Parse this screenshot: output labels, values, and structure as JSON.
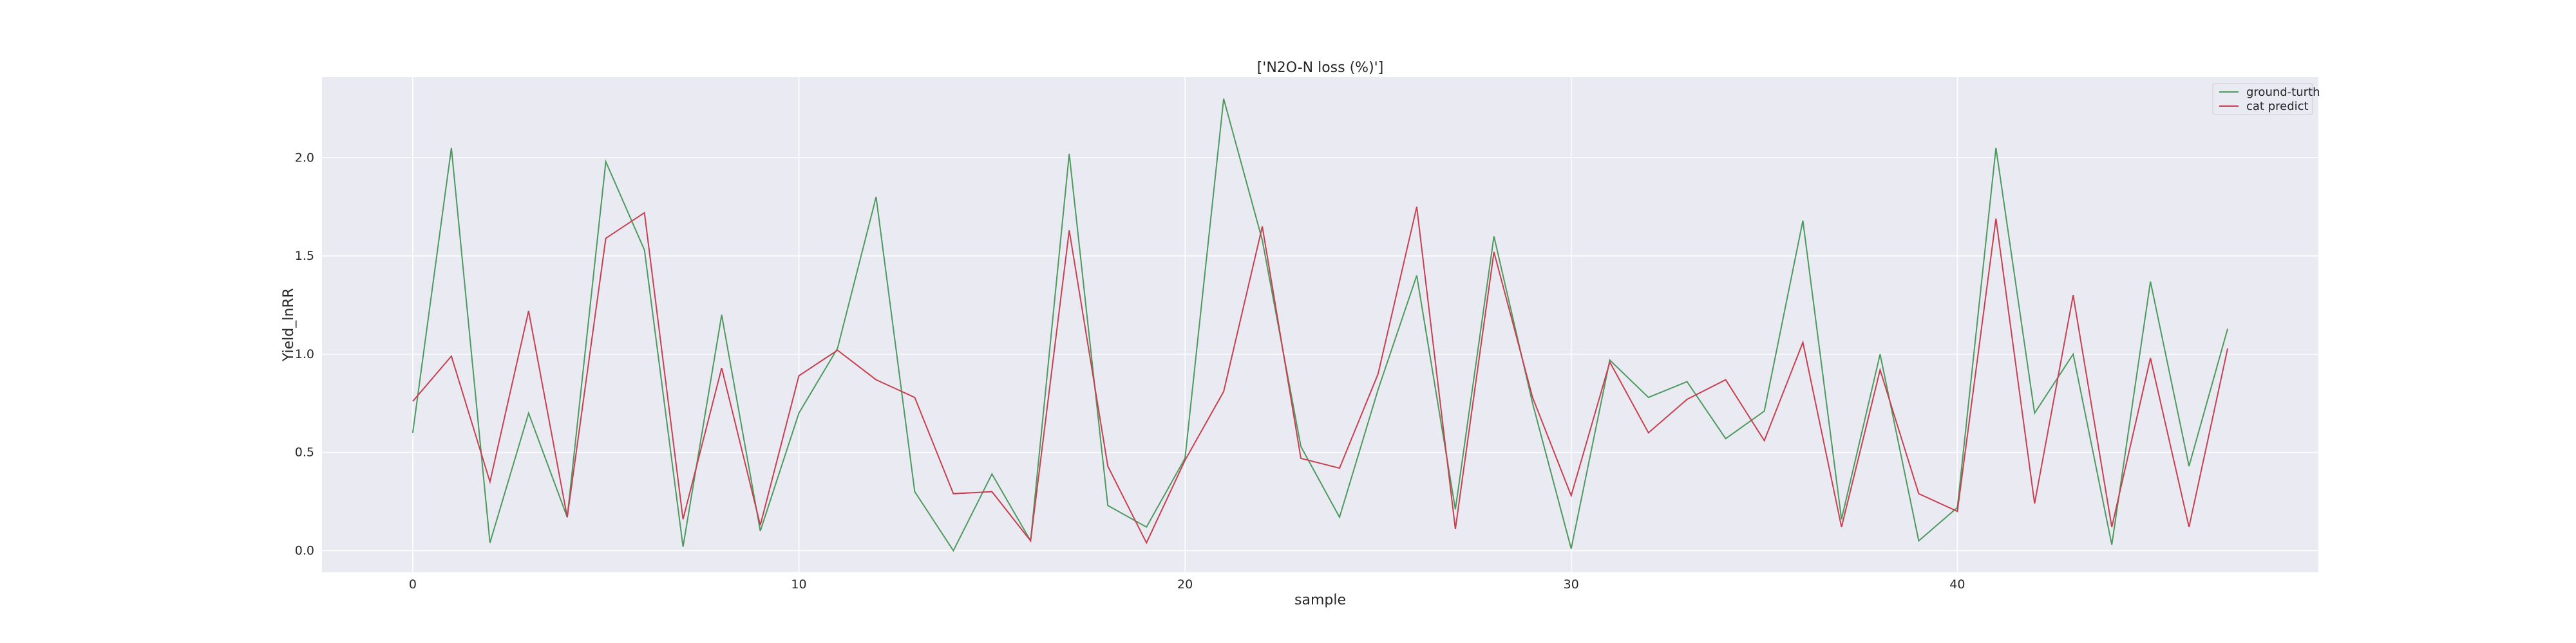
{
  "chart_data": {
    "type": "line",
    "title": "['N2O-N loss (%)']",
    "xlabel": "sample",
    "ylabel": "Yield_lnRR",
    "xlim": [
      -2.35,
      49.35
    ],
    "ylim": [
      -0.11,
      2.41
    ],
    "xticks": [
      0,
      10,
      20,
      30,
      40
    ],
    "yticks": [
      0.0,
      0.5,
      1.0,
      1.5,
      2.0
    ],
    "ytick_labels": [
      "0.0",
      "0.5",
      "1.0",
      "1.5",
      "2.0"
    ],
    "grid": true,
    "legend_position": "top-right",
    "x": [
      0,
      1,
      2,
      3,
      4,
      5,
      6,
      7,
      8,
      9,
      10,
      11,
      12,
      13,
      14,
      15,
      16,
      17,
      18,
      19,
      20,
      21,
      22,
      23,
      24,
      25,
      26,
      27,
      28,
      29,
      30,
      31,
      32,
      33,
      34,
      35,
      36,
      37,
      38,
      39,
      40,
      41,
      42,
      43,
      44,
      45,
      46,
      47
    ],
    "series": [
      {
        "name": "ground-turth",
        "color": "#4c9a5e",
        "values": [
          0.6,
          2.05,
          0.04,
          0.7,
          0.17,
          1.98,
          1.53,
          0.02,
          1.2,
          0.1,
          0.7,
          1.03,
          1.8,
          0.3,
          0.0,
          0.39,
          0.05,
          2.02,
          0.23,
          0.12,
          0.47,
          2.3,
          1.58,
          0.53,
          0.17,
          0.82,
          1.4,
          0.21,
          1.6,
          0.75,
          0.01,
          0.97,
          0.78,
          0.86,
          0.57,
          0.71,
          1.68,
          0.16,
          1.0,
          0.05,
          0.22,
          2.05,
          0.7,
          1.0,
          0.03,
          1.37,
          0.43,
          1.13
        ]
      },
      {
        "name": "cat predict",
        "color": "#c8404f",
        "values": [
          0.76,
          0.99,
          0.35,
          1.22,
          0.17,
          1.59,
          1.72,
          0.16,
          0.93,
          0.13,
          0.89,
          1.02,
          0.87,
          0.78,
          0.29,
          0.3,
          0.05,
          1.63,
          0.43,
          0.04,
          0.46,
          0.81,
          1.65,
          0.47,
          0.42,
          0.9,
          1.75,
          0.11,
          1.52,
          0.78,
          0.28,
          0.96,
          0.6,
          0.77,
          0.87,
          0.56,
          1.06,
          0.12,
          0.92,
          0.29,
          0.2,
          1.69,
          0.24,
          1.3,
          0.12,
          0.98,
          0.12,
          1.03
        ]
      }
    ]
  }
}
